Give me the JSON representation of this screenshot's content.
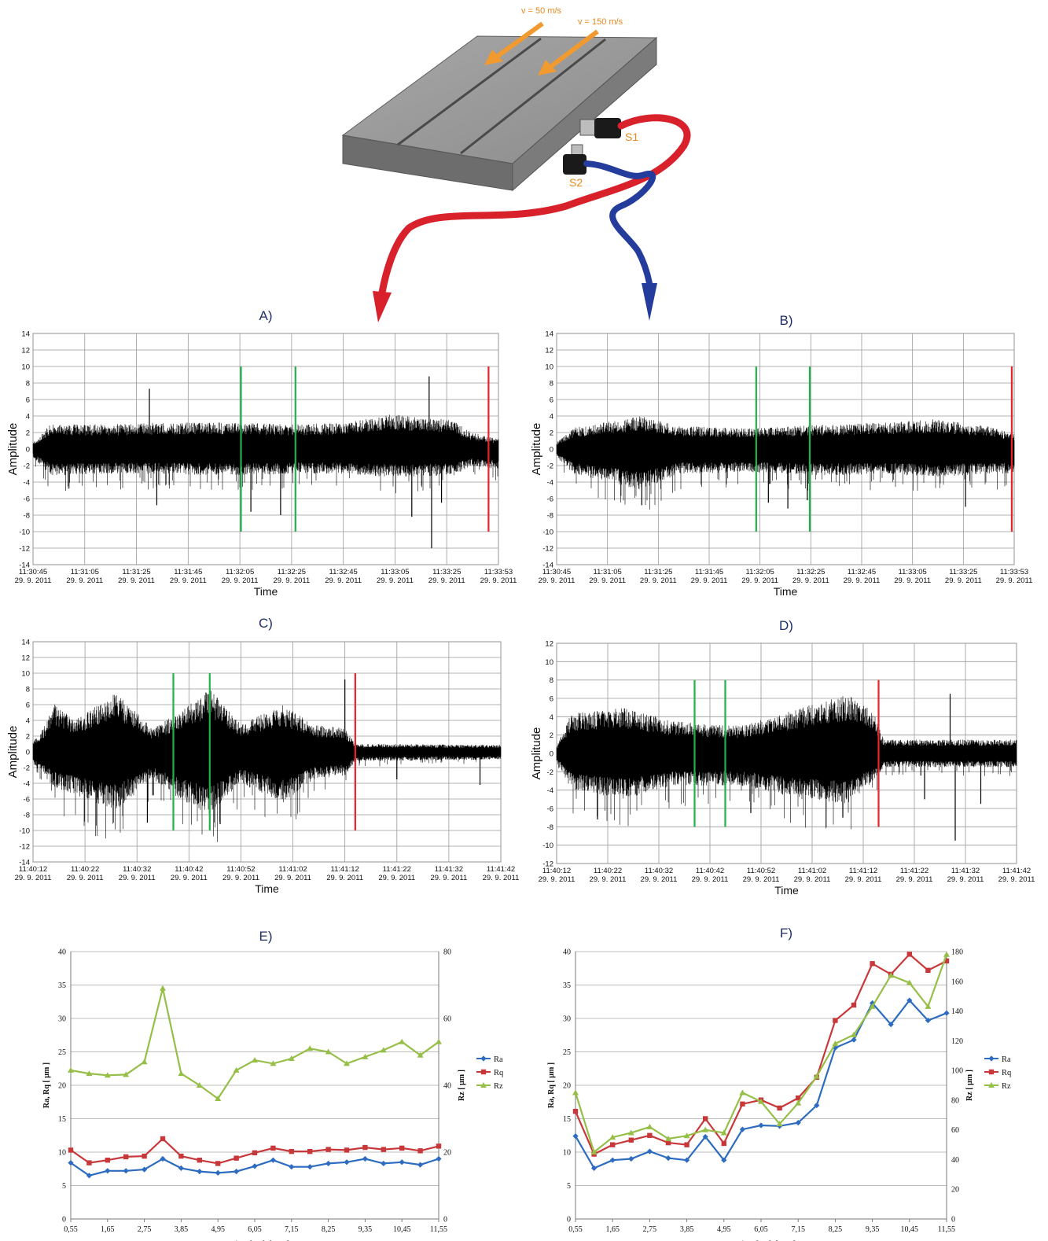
{
  "header": {
    "arrow1_label": "v = 50 m/s",
    "arrow2_label": "v = 150 m/s",
    "sensor1_label": "S1",
    "sensor2_label": "S2"
  },
  "colors": {
    "signal": "#000000",
    "marker_green": "#22b14c",
    "marker_red": "#e8232a",
    "cable_red": "#d8212b",
    "cable_blue": "#243c9c",
    "arrow_orange": "#f09a30",
    "ra": "#2d6cc0",
    "rq": "#c8383a",
    "rz": "#96bf48"
  },
  "chart_data": [
    {
      "id": "A",
      "type": "line",
      "panel_label": "A)",
      "xlabel": "Time",
      "ylabel": "Amplitude",
      "ylim": [
        -14,
        14
      ],
      "yticks": [
        14,
        12,
        10,
        8,
        6,
        4,
        2,
        0,
        -2,
        -4,
        -6,
        -8,
        -10,
        -12,
        -14
      ],
      "xticks": [
        {
          "time": "11:30:45",
          "date": "29. 9. 2011"
        },
        {
          "time": "11:31:05",
          "date": "29. 9. 2011"
        },
        {
          "time": "11:31:25",
          "date": "29. 9. 2011"
        },
        {
          "time": "11:31:45",
          "date": "29. 9. 2011"
        },
        {
          "time": "11:32:05",
          "date": "29. 9. 2011"
        },
        {
          "time": "11:32:25",
          "date": "29. 9. 2011"
        },
        {
          "time": "11:32:45",
          "date": "29. 9. 2011"
        },
        {
          "time": "11:33:05",
          "date": "29. 9. 2011"
        },
        {
          "time": "11:33:25",
          "date": "29. 9. 2011"
        },
        {
          "time": "11:33:53",
          "date": "29. 9. 2011"
        }
      ],
      "signal_start_time": "11:30:45",
      "signal_end_time": "11:33:53",
      "envelope": [
        {
          "t": "11:30:45",
          "upper": 0.8,
          "lower": -1.0
        },
        {
          "t": "11:30:52",
          "upper": 3.0,
          "lower": -3.2
        },
        {
          "t": "11:31:15",
          "upper": 3.0,
          "lower": -3.0
        },
        {
          "t": "11:31:35",
          "upper": 3.2,
          "lower": -3.0
        },
        {
          "t": "11:32:05",
          "upper": 3.2,
          "lower": -3.2
        },
        {
          "t": "11:32:30",
          "upper": 3.0,
          "lower": -3.0
        },
        {
          "t": "11:32:50",
          "upper": 3.2,
          "lower": -3.0
        },
        {
          "t": "11:33:10",
          "upper": 4.2,
          "lower": -3.4
        },
        {
          "t": "11:33:35",
          "upper": 3.5,
          "lower": -3.2
        },
        {
          "t": "11:33:42",
          "upper": 2.0,
          "lower": -2.0
        },
        {
          "t": "11:33:53",
          "upper": 1.2,
          "lower": -2.5
        }
      ],
      "spikes": [
        {
          "t": "11:31:32",
          "value": 7.3
        },
        {
          "t": "11:31:35",
          "value": -6.8
        },
        {
          "t": "11:32:13",
          "value": -7.6
        },
        {
          "t": "11:32:25",
          "value": -8.0
        },
        {
          "t": "11:33:18",
          "value": -8.2
        },
        {
          "t": "11:33:25",
          "value": 8.8
        },
        {
          "t": "11:33:26",
          "value": -12.0
        },
        {
          "t": "11:33:30",
          "value": -6.5
        }
      ],
      "markers": [
        {
          "t": "11:32:09",
          "kind": "green",
          "top": 10,
          "bottom": -10
        },
        {
          "t": "11:32:31",
          "kind": "green",
          "top": 10,
          "bottom": -10
        },
        {
          "t": "11:33:49",
          "kind": "red",
          "top": 10,
          "bottom": -10
        }
      ]
    },
    {
      "id": "B",
      "type": "line",
      "panel_label": "B)",
      "xlabel": "Time",
      "ylabel": "Amplitude",
      "ylim": [
        -14,
        14
      ],
      "yticks": [
        14,
        12,
        10,
        8,
        6,
        4,
        2,
        0,
        -2,
        -4,
        -6,
        -8,
        -10,
        -12,
        -14
      ],
      "xticks": [
        {
          "time": "11:30:45",
          "date": "29. 9. 2011"
        },
        {
          "time": "11:31:05",
          "date": "29. 9. 2011"
        },
        {
          "time": "11:31:25",
          "date": "29. 9. 2011"
        },
        {
          "time": "11:31:45",
          "date": "29. 9. 2011"
        },
        {
          "time": "11:32:05",
          "date": "29. 9. 2011"
        },
        {
          "time": "11:32:25",
          "date": "29. 9. 2011"
        },
        {
          "time": "11:32:45",
          "date": "29. 9. 2011"
        },
        {
          "time": "11:33:05",
          "date": "29. 9. 2011"
        },
        {
          "time": "11:33:25",
          "date": "29. 9. 2011"
        },
        {
          "time": "11:33:53",
          "date": "29. 9. 2011"
        }
      ],
      "signal_start_time": "11:30:45",
      "signal_end_time": "11:33:53",
      "envelope": [
        {
          "t": "11:30:45",
          "upper": 0.8,
          "lower": -1.0
        },
        {
          "t": "11:30:52",
          "upper": 2.6,
          "lower": -3.0
        },
        {
          "t": "11:31:20",
          "upper": 4.0,
          "lower": -5.0
        },
        {
          "t": "11:31:35",
          "upper": 2.8,
          "lower": -3.0
        },
        {
          "t": "11:32:05",
          "upper": 2.5,
          "lower": -2.8
        },
        {
          "t": "11:32:35",
          "upper": 3.0,
          "lower": -3.2
        },
        {
          "t": "11:33:00",
          "upper": 3.2,
          "lower": -3.0
        },
        {
          "t": "11:33:20",
          "upper": 3.6,
          "lower": -3.4
        },
        {
          "t": "11:33:42",
          "upper": 2.8,
          "lower": -3.0
        },
        {
          "t": "11:33:53",
          "upper": 1.8,
          "lower": -3.0
        }
      ],
      "spikes": [
        {
          "t": "11:31:20",
          "value": -6.8
        },
        {
          "t": "11:32:12",
          "value": -6.5
        },
        {
          "t": "11:32:20",
          "value": -7.2
        },
        {
          "t": "11:32:28",
          "value": -6.2
        },
        {
          "t": "11:33:33",
          "value": -7.0
        }
      ],
      "markers": [
        {
          "t": "11:32:07",
          "kind": "green",
          "top": 10,
          "bottom": -10
        },
        {
          "t": "11:32:29",
          "kind": "green",
          "top": 10,
          "bottom": -10
        },
        {
          "t": "11:33:52",
          "kind": "red",
          "top": 10,
          "bottom": -10
        }
      ]
    },
    {
      "id": "C",
      "type": "line",
      "panel_label": "C)",
      "xlabel": "Time",
      "ylabel": "Amplitude",
      "ylim": [
        -14,
        14
      ],
      "yticks": [
        14,
        12,
        10,
        8,
        6,
        4,
        2,
        0,
        -2,
        -4,
        -6,
        -8,
        -10,
        -12,
        -14
      ],
      "xticks": [
        {
          "time": "11:40:12",
          "date": "29. 9. 2011"
        },
        {
          "time": "11:40:22",
          "date": "29. 9. 2011"
        },
        {
          "time": "11:40:32",
          "date": "29. 9. 2011"
        },
        {
          "time": "11:40:42",
          "date": "29. 9. 2011"
        },
        {
          "time": "11:40:52",
          "date": "29. 9. 2011"
        },
        {
          "time": "11:41:02",
          "date": "29. 9. 2011"
        },
        {
          "time": "11:41:12",
          "date": "29. 9. 2011"
        },
        {
          "time": "11:41:22",
          "date": "29. 9. 2011"
        },
        {
          "time": "11:41:32",
          "date": "29. 9. 2011"
        },
        {
          "time": "11:41:42",
          "date": "29. 9. 2011"
        }
      ],
      "signal_start_time": "11:40:12",
      "signal_end_time": "11:41:42",
      "envelope": [
        {
          "t": "11:40:12",
          "upper": 1.5,
          "lower": -1.5
        },
        {
          "t": "11:40:14",
          "upper": 3.0,
          "lower": -3.0
        },
        {
          "t": "11:40:16",
          "upper": 6.2,
          "lower": -4.5
        },
        {
          "t": "11:40:20",
          "upper": 4.0,
          "lower": -5.5
        },
        {
          "t": "11:40:28",
          "upper": 7.5,
          "lower": -7.5
        },
        {
          "t": "11:40:35",
          "upper": 3.0,
          "lower": -3.5
        },
        {
          "t": "11:40:40",
          "upper": 5.0,
          "lower": -6.0
        },
        {
          "t": "11:40:46",
          "upper": 8.0,
          "lower": -8.0
        },
        {
          "t": "11:40:52",
          "upper": 3.5,
          "lower": -4.0
        },
        {
          "t": "11:41:00",
          "upper": 6.0,
          "lower": -6.5
        },
        {
          "t": "11:41:06",
          "upper": 3.5,
          "lower": -3.5
        },
        {
          "t": "11:41:12",
          "upper": 3.0,
          "lower": -3.0
        },
        {
          "t": "11:41:14",
          "upper": 1.0,
          "lower": -1.2
        },
        {
          "t": "11:41:42",
          "upper": 0.9,
          "lower": -1.0
        }
      ],
      "spikes": [
        {
          "t": "11:40:34",
          "value": -9.0
        },
        {
          "t": "11:40:48",
          "value": -9.2
        },
        {
          "t": "11:41:12",
          "value": 9.2
        },
        {
          "t": "11:41:22",
          "value": -3.5
        },
        {
          "t": "11:41:38",
          "value": -4.2
        }
      ],
      "markers": [
        {
          "t": "11:40:39",
          "kind": "green",
          "top": 10,
          "bottom": -10
        },
        {
          "t": "11:40:46",
          "kind": "green",
          "top": 10,
          "bottom": -10
        },
        {
          "t": "11:41:14",
          "kind": "red",
          "top": 10,
          "bottom": -10
        }
      ]
    },
    {
      "id": "D",
      "type": "line",
      "panel_label": "D)",
      "xlabel": "Time",
      "ylabel": "Amplitude",
      "ylim": [
        -12,
        12
      ],
      "yticks": [
        12,
        10,
        8,
        6,
        4,
        2,
        0,
        -2,
        -4,
        -6,
        -8,
        -10,
        -12
      ],
      "xticks": [
        {
          "time": "11:40:12",
          "date": "29. 9. 2011"
        },
        {
          "time": "11:40:22",
          "date": "29. 9. 2011"
        },
        {
          "time": "11:40:32",
          "date": "29. 9. 2011"
        },
        {
          "time": "11:40:42",
          "date": "29. 9. 2011"
        },
        {
          "time": "11:40:52",
          "date": "29. 9. 2011"
        },
        {
          "time": "11:41:02",
          "date": "29. 9. 2011"
        },
        {
          "time": "11:41:12",
          "date": "29. 9. 2011"
        },
        {
          "time": "11:41:22",
          "date": "29. 9. 2011"
        },
        {
          "time": "11:41:32",
          "date": "29. 9. 2011"
        },
        {
          "time": "11:41:42",
          "date": "29. 9. 2011"
        }
      ],
      "signal_start_time": "11:40:12",
      "signal_end_time": "11:41:42",
      "envelope": [
        {
          "t": "11:40:12",
          "upper": 0.8,
          "lower": -1.0
        },
        {
          "t": "11:40:15",
          "upper": 4.5,
          "lower": -4.0
        },
        {
          "t": "11:40:25",
          "upper": 5.0,
          "lower": -5.0
        },
        {
          "t": "11:40:35",
          "upper": 3.5,
          "lower": -3.5
        },
        {
          "t": "11:40:48",
          "upper": 3.0,
          "lower": -3.5
        },
        {
          "t": "11:41:00",
          "upper": 5.0,
          "lower": -5.0
        },
        {
          "t": "11:41:09",
          "upper": 6.5,
          "lower": -5.5
        },
        {
          "t": "11:41:14",
          "upper": 4.5,
          "lower": -3.0
        },
        {
          "t": "11:41:16",
          "upper": 1.5,
          "lower": -1.5
        },
        {
          "t": "11:41:42",
          "upper": 1.5,
          "lower": -1.5
        }
      ],
      "spikes": [
        {
          "t": "11:40:20",
          "value": -7.2
        },
        {
          "t": "11:40:45",
          "value": -7.5
        },
        {
          "t": "11:40:50",
          "value": -6.5
        },
        {
          "t": "11:41:08",
          "value": -7.0
        },
        {
          "t": "11:41:24",
          "value": -5.0
        },
        {
          "t": "11:41:29",
          "value": 6.5
        },
        {
          "t": "11:41:30",
          "value": -9.5
        },
        {
          "t": "11:41:35",
          "value": -5.5
        }
      ],
      "markers": [
        {
          "t": "11:40:39",
          "kind": "green",
          "top": 8,
          "bottom": -8
        },
        {
          "t": "11:40:45",
          "kind": "green",
          "top": 8,
          "bottom": -8
        },
        {
          "t": "11:41:15",
          "kind": "red",
          "top": 8,
          "bottom": -8
        }
      ]
    },
    {
      "id": "E",
      "type": "line",
      "panel_label": "E)",
      "xlabel": "Cutting depth [mm ]",
      "ylabel": "Ra, Rq [ µm ]",
      "y2label": "Rz [ µm ]",
      "ylim": [
        0,
        40
      ],
      "y2lim": [
        0,
        80
      ],
      "yticks": [
        0,
        5,
        10,
        15,
        20,
        25,
        30,
        35,
        40
      ],
      "y2ticks": [
        0,
        20,
        40,
        60,
        80
      ],
      "x": [
        0.55,
        1.1,
        1.65,
        2.2,
        2.75,
        3.3,
        3.85,
        4.4,
        4.95,
        5.5,
        6.05,
        6.6,
        7.15,
        7.7,
        8.25,
        8.8,
        9.35,
        9.9,
        10.45,
        11.0,
        11.55
      ],
      "xtick_labels": [
        "0,55",
        "1,65",
        "2,75",
        "3,85",
        "4,95",
        "6,05",
        "7,15",
        "8,25",
        "9,35",
        "10,45",
        "11,55"
      ],
      "xtick_values": [
        0.55,
        1.65,
        2.75,
        3.85,
        4.95,
        6.05,
        7.15,
        8.25,
        9.35,
        10.45,
        11.55
      ],
      "legend_position": "right",
      "series": [
        {
          "name": "Ra",
          "axis": "left",
          "marker": "diamond",
          "values": [
            8.4,
            6.5,
            7.2,
            7.2,
            7.4,
            9.0,
            7.6,
            7.1,
            6.9,
            7.1,
            7.9,
            8.8,
            7.8,
            7.8,
            8.3,
            8.5,
            9.0,
            8.3,
            8.5,
            8.1,
            9.0
          ]
        },
        {
          "name": "Rq",
          "axis": "left",
          "marker": "square",
          "values": [
            10.3,
            8.4,
            8.8,
            9.3,
            9.4,
            12.0,
            9.4,
            8.8,
            8.3,
            9.1,
            9.9,
            10.6,
            10.1,
            10.1,
            10.4,
            10.3,
            10.7,
            10.4,
            10.6,
            10.2,
            10.9
          ]
        },
        {
          "name": "Rz",
          "axis": "right",
          "marker": "triangle",
          "values": [
            44.5,
            43.5,
            43.0,
            43.2,
            47.0,
            69.0,
            43.5,
            40.0,
            36.0,
            44.5,
            47.5,
            46.5,
            48.0,
            51.0,
            50.0,
            46.5,
            48.5,
            50.5,
            53.0,
            49.0,
            53.0
          ]
        }
      ]
    },
    {
      "id": "F",
      "type": "line",
      "panel_label": "F)",
      "xlabel": "Cutting depth [mm ]",
      "ylabel": "Ra, Rq [ µm ]",
      "y2label": "Rz [ µm ]",
      "ylim": [
        0,
        40
      ],
      "y2lim": [
        0,
        180
      ],
      "yticks": [
        0,
        5,
        10,
        15,
        20,
        25,
        30,
        35,
        40
      ],
      "y2ticks": [
        0,
        20,
        40,
        60,
        80,
        100,
        120,
        140,
        160,
        180
      ],
      "x": [
        0.55,
        1.1,
        1.65,
        2.2,
        2.75,
        3.3,
        3.85,
        4.4,
        4.95,
        5.5,
        6.05,
        6.6,
        7.15,
        7.7,
        8.25,
        8.8,
        9.35,
        9.9,
        10.45,
        11.0,
        11.55
      ],
      "xtick_labels": [
        "0,55",
        "1,65",
        "2,75",
        "3,85",
        "4,95",
        "6,05",
        "7,15",
        "8,25",
        "9,35",
        "10,45",
        "11,55"
      ],
      "xtick_values": [
        0.55,
        1.65,
        2.75,
        3.85,
        4.95,
        6.05,
        7.15,
        8.25,
        9.35,
        10.45,
        11.55
      ],
      "legend_position": "right",
      "series": [
        {
          "name": "Ra",
          "axis": "left",
          "marker": "diamond",
          "values": [
            12.4,
            7.6,
            8.8,
            9.0,
            10.1,
            9.1,
            8.8,
            12.3,
            8.8,
            13.4,
            14.0,
            13.9,
            14.4,
            17.0,
            25.6,
            26.8,
            32.3,
            29.1,
            32.7,
            29.7,
            30.8
          ]
        },
        {
          "name": "Rq",
          "axis": "left",
          "marker": "square",
          "values": [
            16.1,
            9.7,
            11.1,
            11.8,
            12.5,
            11.4,
            11.1,
            15.0,
            11.3,
            17.2,
            17.8,
            16.6,
            18.1,
            21.2,
            29.7,
            32.0,
            38.2,
            36.6,
            39.6,
            37.2,
            38.6
          ]
        },
        {
          "name": "Rz",
          "axis": "right",
          "marker": "triangle",
          "values": [
            85.0,
            45.0,
            55.0,
            58.0,
            62.0,
            54.0,
            56.0,
            60.0,
            58.0,
            85.0,
            79.0,
            64.0,
            78.0,
            96.0,
            118.0,
            124.0,
            143.0,
            164.0,
            159.0,
            143.0,
            178.0
          ]
        }
      ]
    }
  ]
}
